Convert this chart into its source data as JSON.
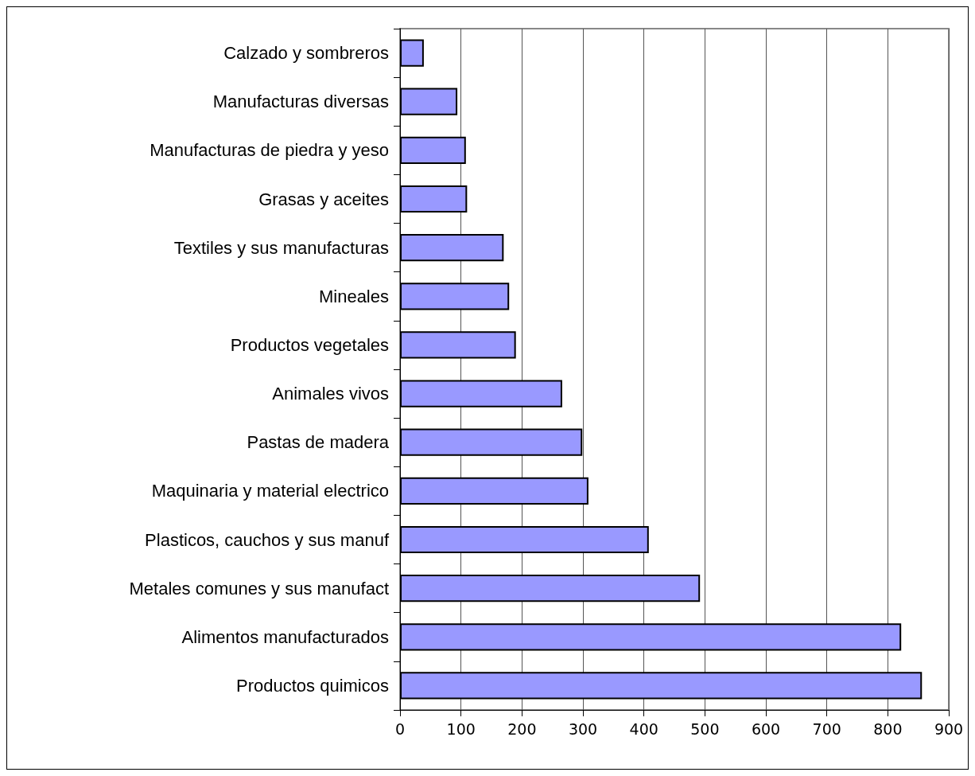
{
  "chart_data": {
    "type": "bar",
    "orientation": "horizontal",
    "categories": [
      "Calzado y sombreros",
      "Manufacturas diversas",
      "Manufacturas de piedra y yeso",
      "Grasas y aceites",
      "Textiles y sus manufacturas",
      "Mineales",
      "Productos vegetales",
      "Animales vivos",
      "Pastas de madera",
      "Maquinaria y material electrico",
      "Plasticos, cauchos y sus manuf",
      "Metales comunes y sus manufact",
      "Alimentos manufacturados",
      "Productos quimicos"
    ],
    "values": [
      39,
      94,
      108,
      110,
      170,
      179,
      190,
      266,
      299,
      309,
      408,
      492,
      822,
      856
    ],
    "color": "#9999ff",
    "xlim": [
      0,
      900
    ],
    "xticks": [
      0,
      100,
      200,
      300,
      400,
      500,
      600,
      700,
      800,
      900
    ],
    "grid": "x"
  }
}
